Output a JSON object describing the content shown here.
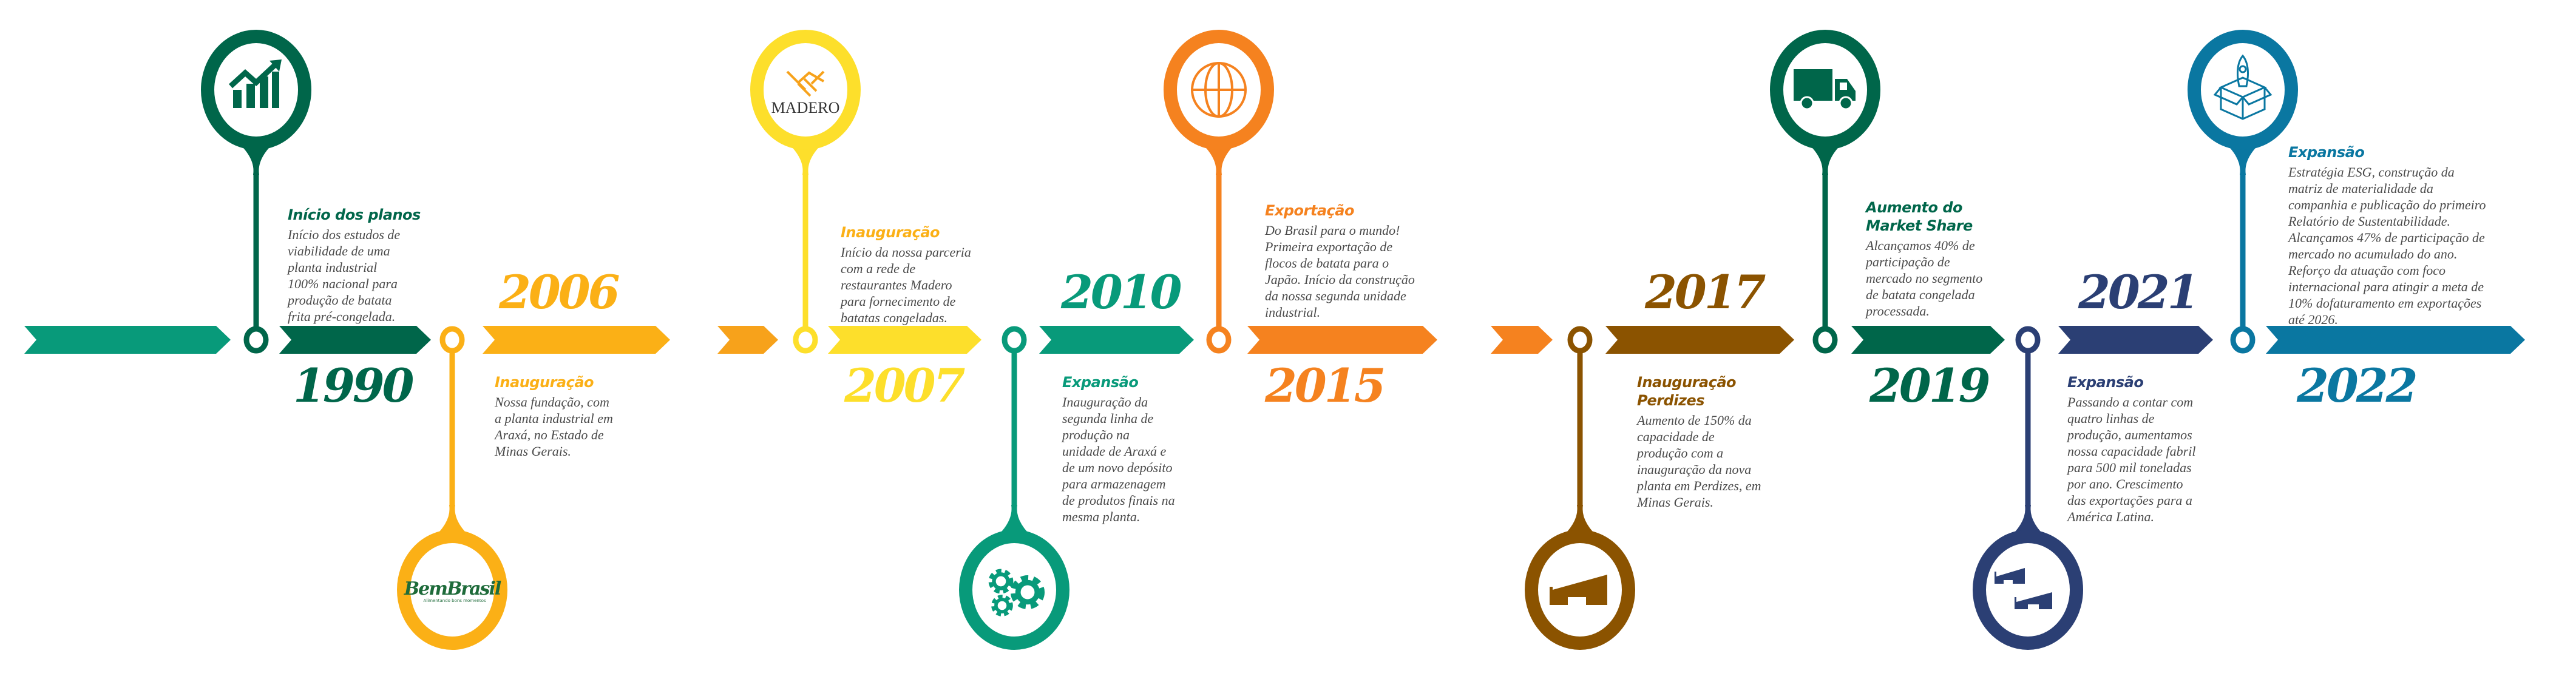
{
  "palette": {
    "lead": "#089a7a",
    "small_arrow_1": "#f7a21b",
    "small_arrow_2": "#f5821f",
    "body_text": "#4a4a4a"
  },
  "logos": {
    "bembrasil": "BemBrasil",
    "bembrasil_tagline": "Alimentando bons momentos",
    "madero": "MADERO"
  },
  "events": [
    {
      "year": "1990",
      "title": [
        "Início dos planos"
      ],
      "body": [
        "Início dos estudos de",
        "viabilidade de uma",
        "planta industrial",
        "100% nacional para",
        "produção de batata",
        "frita pré-congelada."
      ],
      "color": "#00664a",
      "icon": "growth-chart-icon",
      "pin": "top"
    },
    {
      "year": "2006",
      "title": [
        "Inauguração"
      ],
      "body": [
        "Nossa fundação, com",
        "a planta industrial em",
        "Araxá, no Estado de",
        "Minas Gerais."
      ],
      "color": "#fbb016",
      "icon": "bembrasil-logo",
      "pin": "bottom"
    },
    {
      "year": "2007",
      "title": [
        "Inauguração"
      ],
      "body": [
        "Início da nossa parceria",
        "com a rede de",
        "restaurantes Madero",
        "para fornecimento de",
        "batatas congeladas."
      ],
      "color": "#fddf2b",
      "title_color": "#fbb016",
      "icon": "handshake-icon",
      "pin": "top"
    },
    {
      "year": "2010",
      "title": [
        "Expansão"
      ],
      "body": [
        "Inauguração da",
        "segunda linha de",
        "produção na",
        "unidade de Araxá e",
        "de um novo depósito",
        "para armazenagem",
        "de produtos finais na",
        "mesma planta."
      ],
      "color": "#089a7a",
      "icon": "gears-icon",
      "pin": "bottom"
    },
    {
      "year": "2015",
      "title": [
        "Exportação"
      ],
      "body": [
        "Do Brasil para o mundo!",
        "Primeira exportação de",
        "flocos de batata para o",
        "Japão. Início da construção",
        "da nossa segunda unidade",
        "industrial."
      ],
      "color": "#f5821f",
      "icon": "globe-icon",
      "pin": "top"
    },
    {
      "year": "2017",
      "title": [
        "Inauguração",
        "Perdizes"
      ],
      "body": [
        "Aumento de 150% da",
        "capacidade de",
        "produção com a",
        "inauguração da nova",
        "planta em Perdizes, em",
        "Minas Gerais."
      ],
      "color": "#8b5300",
      "icon": "factory-icon",
      "pin": "bottom"
    },
    {
      "year": "2019",
      "title": [
        "Aumento do",
        "Market Share"
      ],
      "body": [
        "Alcançamos 40% de",
        "participação de",
        "mercado no segmento",
        "de batata congelada",
        "processada."
      ],
      "color": "#00664a",
      "icon": "truck-icon",
      "pin": "top"
    },
    {
      "year": "2021",
      "title": [
        "Expansão"
      ],
      "body": [
        "Passando a contar com",
        "quatro linhas de",
        "produção, aumentamos",
        "nossa capacidade fabril",
        "para 500 mil toneladas",
        "por ano. Crescimento",
        "das exportações para a",
        "América Latina."
      ],
      "color": "#2b3f74",
      "icon": "two-factories-icon",
      "pin": "bottom"
    },
    {
      "year": "2022",
      "title": [
        "Expansão"
      ],
      "body": [
        "Estratégia ESG, construção da",
        "matriz de materialidade da",
        "companhia e publicação do primeiro",
        "Relatório de Sustentabilidade.",
        "Alcançamos 47% de participação de",
        "mercado no acumulado do ano.",
        "Reforço da atuação com foco",
        "internacional para atingir a meta de",
        "10% dofaturamento em exportações",
        "até 2026."
      ],
      "color": "#0a77a1",
      "icon": "rocket-box-icon",
      "pin": "top"
    }
  ]
}
